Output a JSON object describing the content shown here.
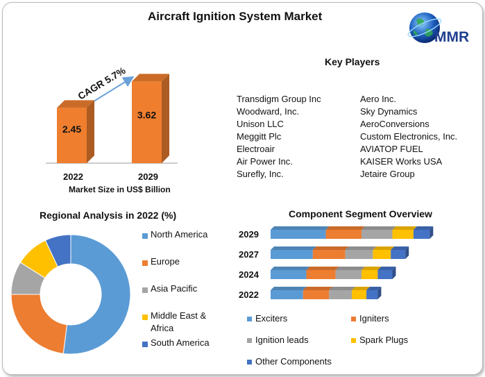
{
  "title": "Aircraft Ignition System Market",
  "logo": {
    "text": "MMR"
  },
  "key_players": {
    "title": "Key Players",
    "col1": [
      "Transdigm Group Inc",
      "Woodward, Inc.",
      "Unison LLC",
      "Meggitt Plc",
      "Electroair",
      "Air Power Inc.",
      "Surefly, Inc."
    ],
    "col2": [
      "Aero Inc.",
      "Sky Dynamics",
      "AeroConversions",
      "Custom Electronics, Inc.",
      "AVIATOP FUEL",
      "KAISER Works USA",
      "Jetaire Group"
    ]
  },
  "market_size": {
    "caption": "Market Size in US$ Billion",
    "cagr": "CAGR 5.7%",
    "bars": [
      {
        "year": "2022",
        "value": "2.45"
      },
      {
        "year": "2029",
        "value": "3.62"
      }
    ],
    "color": "#ef7e2f"
  },
  "regional": {
    "title": "Regional Analysis in 2022 (%)"
  },
  "component": {
    "title": "Component Segment Overview"
  },
  "chart_data": [
    {
      "type": "bar",
      "title": "",
      "xlabel": "Market Size in US$ Billion",
      "categories": [
        "2022",
        "2029"
      ],
      "values": [
        2.45,
        3.62
      ],
      "annotation": "CAGR 5.7%"
    },
    {
      "type": "pie",
      "title": "Regional Analysis in 2022 (%)",
      "labels": [
        "North America",
        "Europe",
        "Asia Pacific",
        "Middle East & Africa",
        "South America"
      ],
      "values": [
        52,
        23,
        9,
        9,
        7
      ],
      "colors": [
        "#5b9bd5",
        "#ed7d31",
        "#a5a5a5",
        "#ffc000",
        "#4472c4"
      ],
      "donut": true
    },
    {
      "type": "bar",
      "orientation": "horizontal",
      "stacked": true,
      "title": "Component Segment Overview",
      "categories": [
        "2029",
        "2027",
        "2024",
        "2022"
      ],
      "series": [
        {
          "name": "Exciters",
          "color": "#5b9bd5",
          "values": [
            34,
            26,
            22,
            20
          ]
        },
        {
          "name": "Igniters",
          "color": "#ed7d31",
          "values": [
            22,
            20,
            18,
            16
          ]
        },
        {
          "name": "Ignition leads",
          "color": "#a5a5a5",
          "values": [
            19,
            17,
            16,
            14
          ]
        },
        {
          "name": "Spark Plugs",
          "color": "#ffc000",
          "values": [
            13,
            11,
            10,
            9
          ]
        },
        {
          "name": "Other Components",
          "color": "#4472c4",
          "values": [
            10,
            9,
            9,
            7
          ]
        }
      ],
      "legend": "bottom"
    }
  ]
}
